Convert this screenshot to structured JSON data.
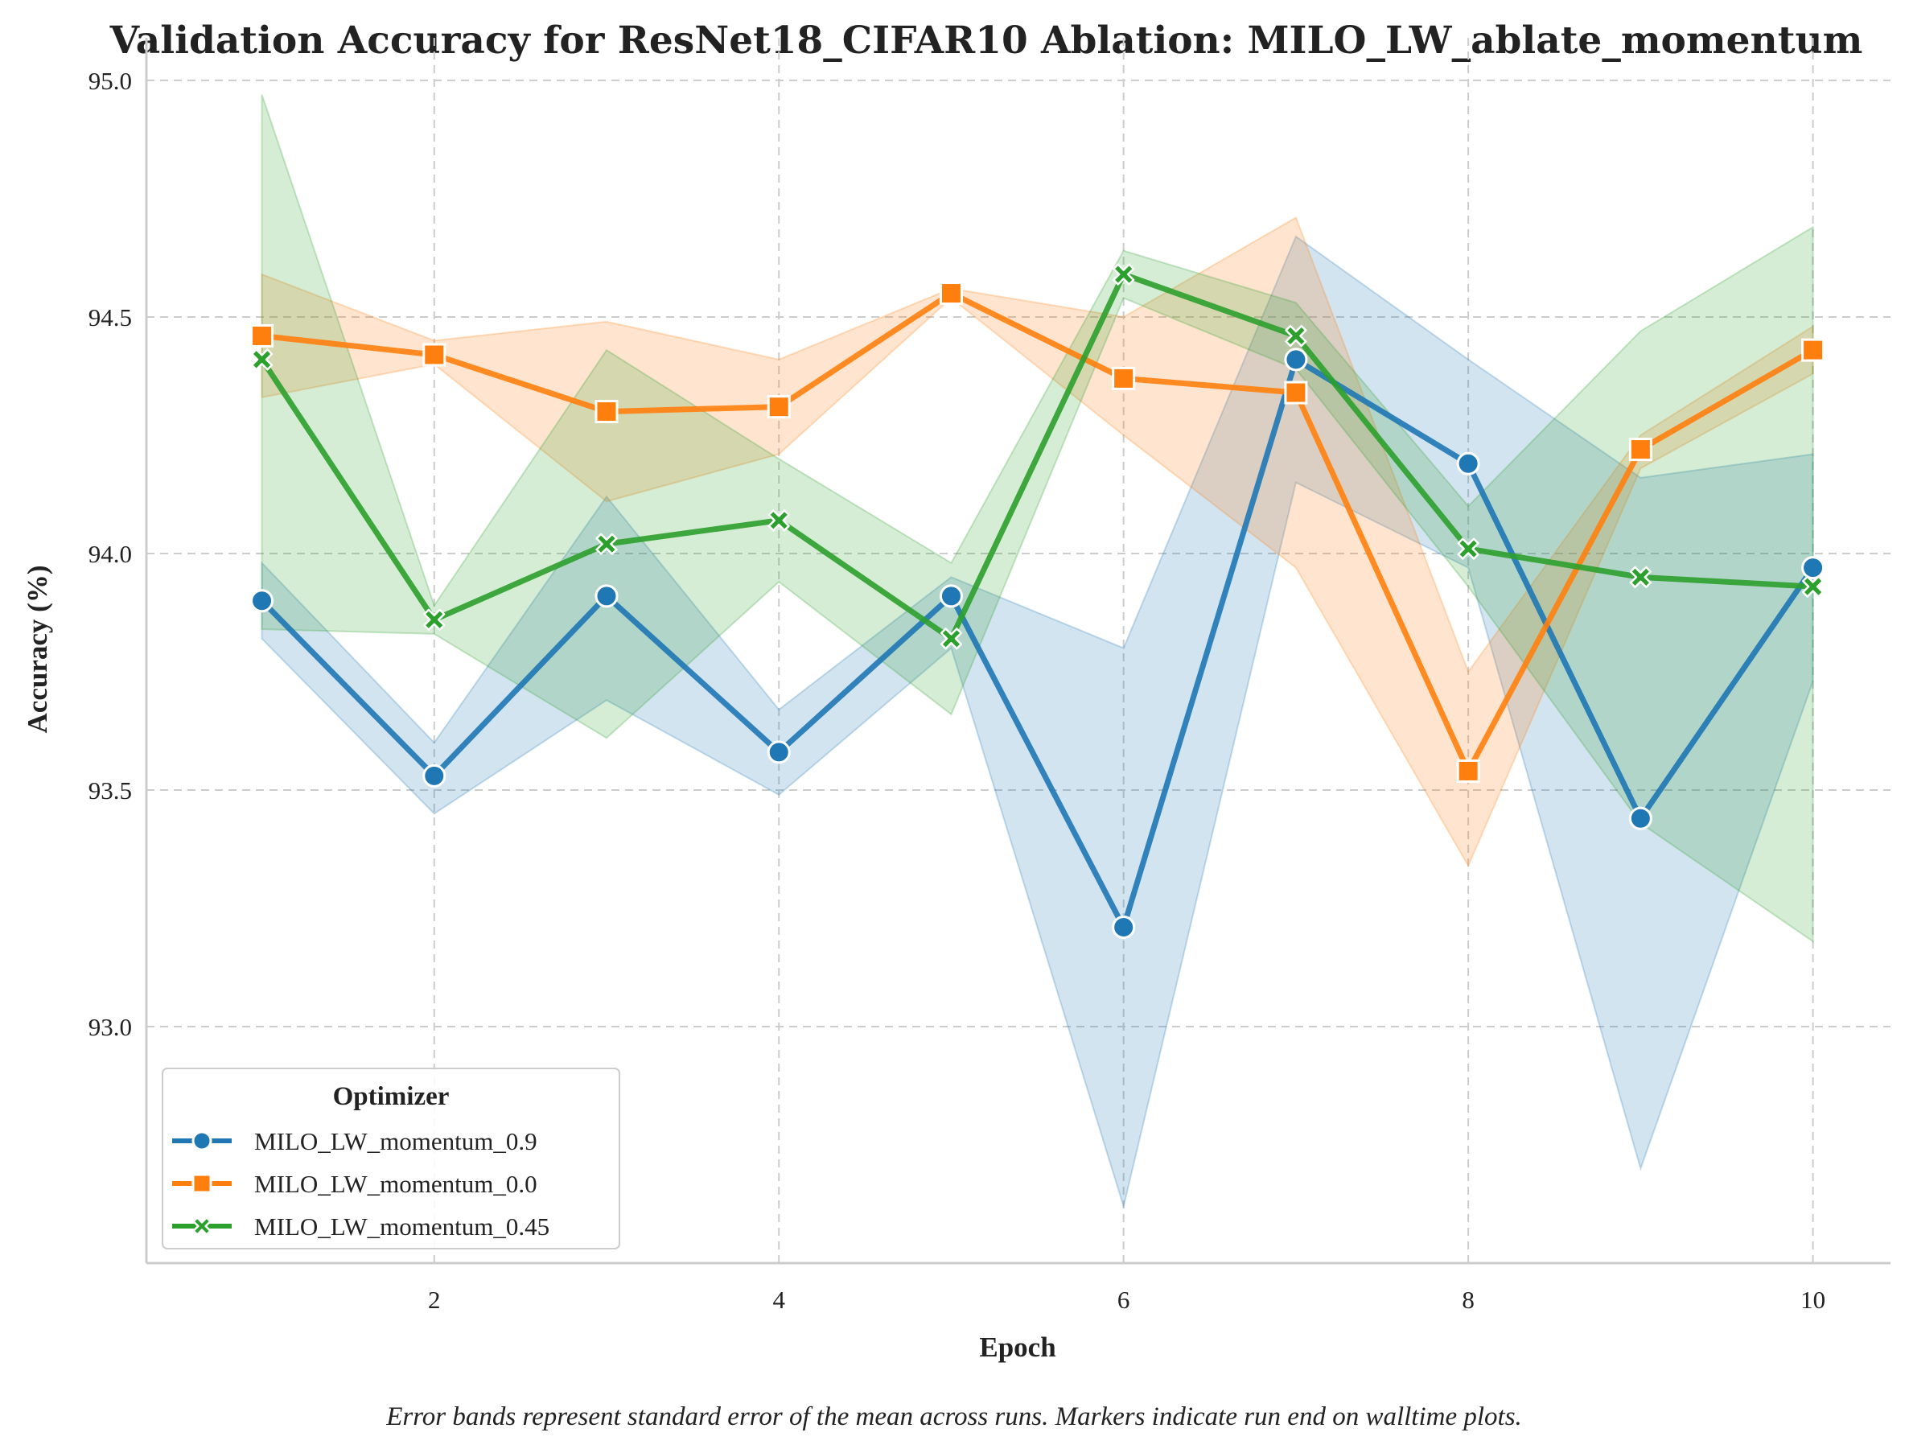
{
  "chart_data": {
    "type": "line",
    "title": "Validation Accuracy for ResNet18_CIFAR10 Ablation: MILO_LW_ablate_momentum",
    "xlabel": "Epoch",
    "ylabel": "Accuracy (%)",
    "xlim": [
      0.33,
      10.45
    ],
    "ylim": [
      92.5,
      95.09
    ],
    "xticks": [
      2,
      4,
      6,
      8,
      10
    ],
    "xtick_labels": [
      "2",
      "4",
      "6",
      "8",
      "10"
    ],
    "yticks": [
      93.0,
      93.5,
      94.0,
      94.5,
      95.0
    ],
    "ytick_labels": [
      "93.0",
      "93.5",
      "94.0",
      "94.5",
      "95.0"
    ],
    "grid": true,
    "x": [
      1,
      2,
      3,
      4,
      5,
      6,
      7,
      8,
      9,
      10
    ],
    "legend": {
      "title": "Optimizer",
      "placement": "lower-left"
    },
    "series": [
      {
        "name": "MILO_LW_momentum_0.9",
        "color": "#1f77b4",
        "marker": "circle",
        "values": [
          93.9,
          93.53,
          93.91,
          93.58,
          93.91,
          93.21,
          94.41,
          94.19,
          93.44,
          93.97
        ],
        "lower": [
          93.82,
          93.45,
          93.69,
          93.49,
          93.8,
          92.62,
          94.15,
          93.97,
          92.7,
          93.73
        ],
        "upper": [
          93.98,
          93.6,
          94.12,
          93.67,
          93.95,
          93.8,
          94.67,
          94.41,
          94.16,
          94.21
        ]
      },
      {
        "name": "MILO_LW_momentum_0.0",
        "color": "#ff7f0e",
        "marker": "square",
        "values": [
          94.46,
          94.42,
          94.3,
          94.31,
          94.55,
          94.37,
          94.34,
          93.54,
          94.22,
          94.43
        ],
        "lower": [
          94.33,
          94.4,
          94.11,
          94.21,
          94.54,
          94.25,
          93.97,
          93.34,
          94.18,
          94.38
        ],
        "upper": [
          94.59,
          94.45,
          94.49,
          94.41,
          94.56,
          94.5,
          94.71,
          93.75,
          94.25,
          94.48
        ]
      },
      {
        "name": "MILO_LW_momentum_0.45",
        "color": "#2ca02c",
        "marker": "x",
        "values": [
          94.41,
          93.86,
          94.02,
          94.07,
          93.82,
          94.59,
          94.46,
          94.01,
          93.95,
          93.93
        ],
        "lower": [
          93.84,
          93.83,
          93.61,
          93.94,
          93.66,
          94.54,
          94.39,
          93.93,
          93.43,
          93.18
        ],
        "upper": [
          94.97,
          93.89,
          94.43,
          94.2,
          93.98,
          94.64,
          94.53,
          94.1,
          94.47,
          94.69
        ]
      }
    ],
    "caption": "Error bands represent standard error of the mean across runs. Markers indicate run end on walltime plots."
  }
}
